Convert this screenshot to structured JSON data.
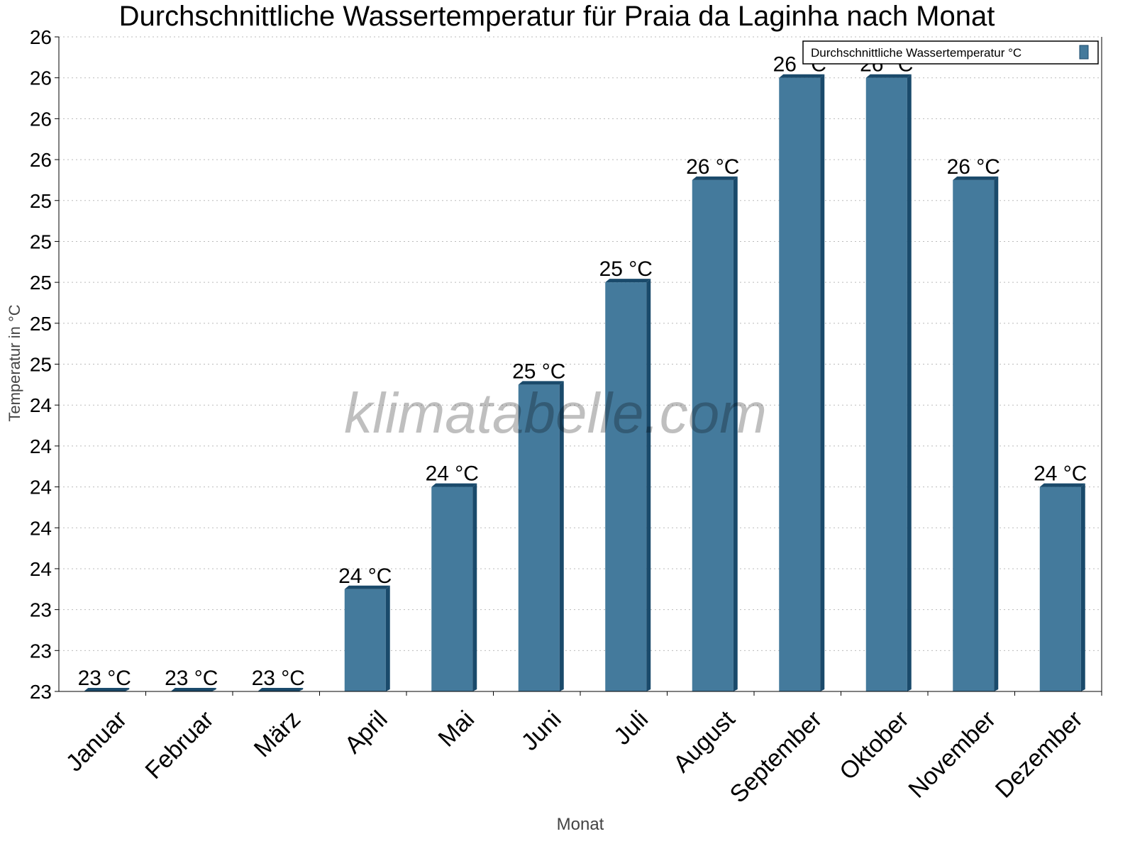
{
  "chart_data": {
    "type": "bar",
    "title": "Durchschnittliche Wassertemperatur für Praia da Laginha nach Monat",
    "xlabel": "Monat",
    "ylabel": "Temperatur in °C",
    "categories": [
      "Januar",
      "Februar",
      "März",
      "April",
      "Mai",
      "Juni",
      "Juli",
      "August",
      "September",
      "Oktober",
      "November",
      "Dezember"
    ],
    "series": [
      {
        "name": "Durchschnittliche Wassertemperatur °C",
        "values": [
          23.0,
          23.0,
          23.0,
          23.5,
          24.0,
          24.5,
          25.0,
          25.5,
          26.0,
          26.0,
          25.5,
          24.0
        ],
        "data_labels": [
          "23 °C",
          "23 °C",
          "23 °C",
          "24 °C",
          "24 °C",
          "25 °C",
          "25 °C",
          "26 °C",
          "26 °C",
          "26 °C",
          "26 °C",
          "24 °C"
        ],
        "color": "#447a9c",
        "edge_color": "#1a4a6b"
      }
    ],
    "ylim": [
      23.0,
      26.2
    ],
    "yticks": [
      23.0,
      23.2,
      23.4,
      23.6,
      23.8,
      24.0,
      24.2,
      24.4,
      24.6,
      24.8,
      25.0,
      25.2,
      25.4,
      25.6,
      25.8,
      26.0,
      26.2
    ],
    "ytick_labels": [
      "23",
      "23",
      "23",
      "24",
      "24",
      "24",
      "24",
      "24",
      "25",
      "25",
      "25",
      "25",
      "25",
      "26",
      "26",
      "26",
      "26"
    ],
    "grid": true,
    "legend": "top-right",
    "watermark": "klimatabelle.com"
  }
}
